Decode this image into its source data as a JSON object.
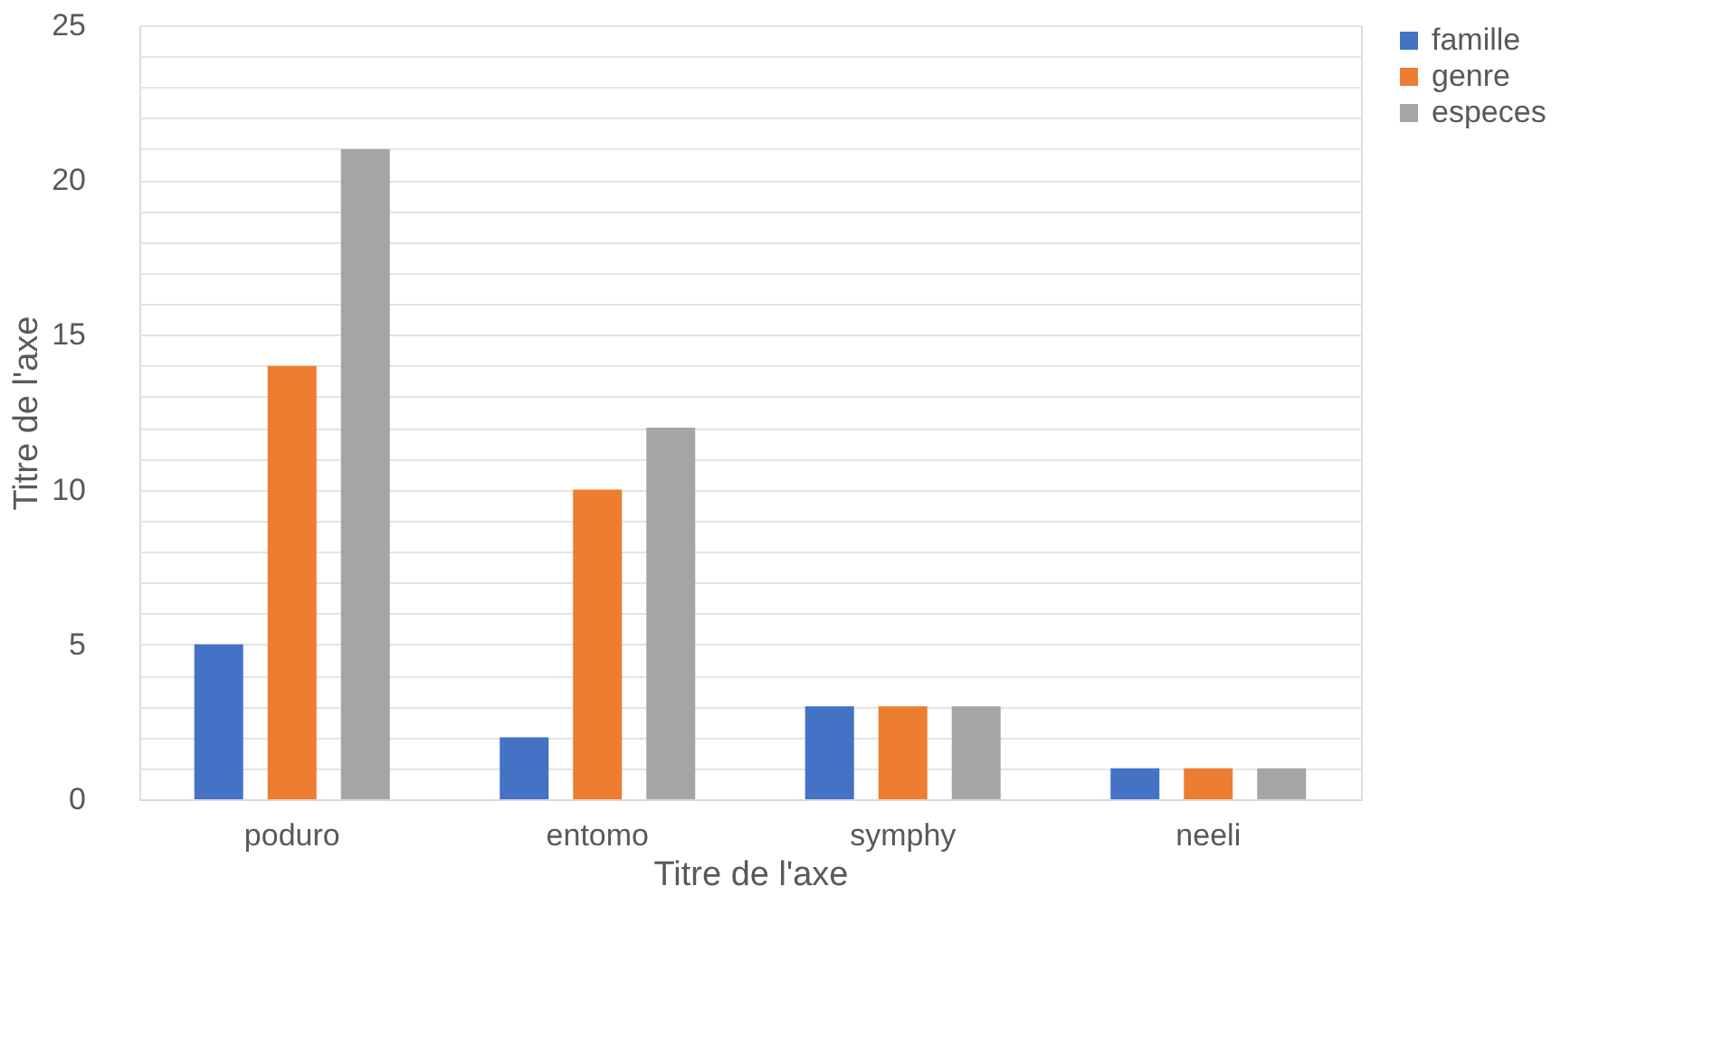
{
  "chart_data": {
    "type": "bar",
    "xlabel": "Titre de l'axe",
    "ylabel": "Titre de l'axe",
    "categories": [
      "poduro",
      "entomo",
      "symphy",
      "neeli"
    ],
    "series": [
      {
        "name": "famille",
        "color": "#4472c4",
        "values": [
          5,
          2,
          3,
          1
        ]
      },
      {
        "name": "genre",
        "color": "#ed7d31",
        "values": [
          14,
          10,
          3,
          1
        ]
      },
      {
        "name": "especes",
        "color": "#a5a5a5",
        "values": [
          21,
          12,
          3,
          1
        ]
      }
    ],
    "ylim": [
      0,
      25
    ],
    "yticks": [
      0,
      {
        "value": 1,
        "label": null
      },
      {
        "value": 2,
        "label": null
      },
      {
        "value": 3,
        "label": null
      },
      {
        "value": 4,
        "label": null
      },
      5,
      {
        "value": 6,
        "label": null
      },
      {
        "value": 7,
        "label": null
      },
      {
        "value": 8,
        "label": null
      },
      {
        "value": 9,
        "label": null
      },
      10,
      {
        "value": 11,
        "label": null
      },
      {
        "value": 12,
        "label": null
      },
      {
        "value": 13,
        "label": null
      },
      {
        "value": 14,
        "label": null
      },
      15,
      {
        "value": 16,
        "label": null
      },
      {
        "value": 17,
        "label": null
      },
      {
        "value": 18,
        "label": null
      },
      {
        "value": 19,
        "label": null
      },
      20,
      {
        "value": 21,
        "label": null
      },
      {
        "value": 22,
        "label": null
      },
      {
        "value": 23,
        "label": null
      },
      {
        "value": 24,
        "label": null
      },
      25
    ],
    "grid": "y",
    "legend": "right"
  }
}
